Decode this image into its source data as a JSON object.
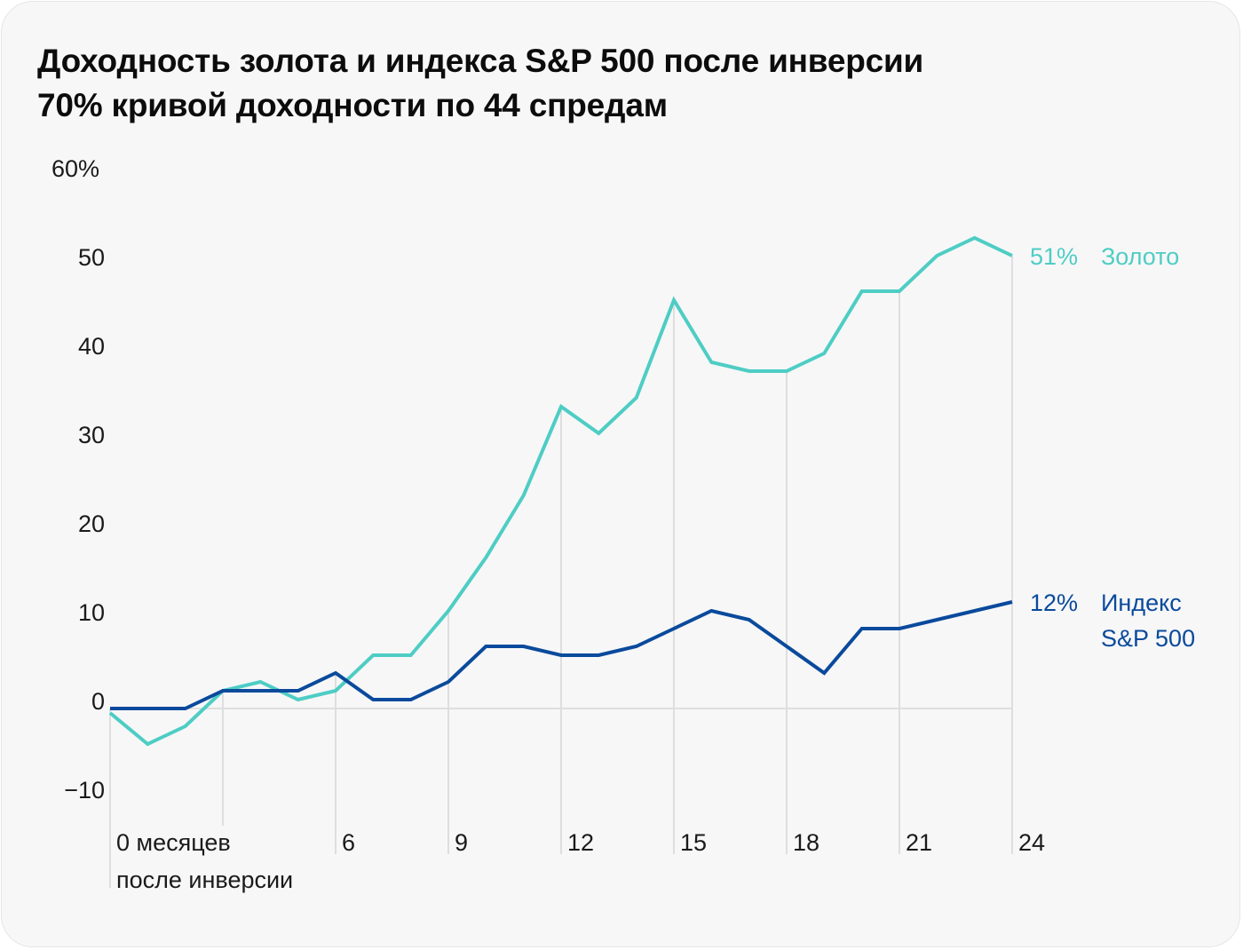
{
  "chart_data": {
    "type": "line",
    "title": "Доходность золота и индекса S&P 500 после инверсии 70% кривой доходности по 44 спредам",
    "title_lines": [
      "Доходность золота и индекса S&P 500 после инверсии",
      "70% кривой доходности по 44 спредам"
    ],
    "xlabel": "",
    "ylabel": "",
    "x": [
      0,
      1,
      2,
      3,
      4,
      5,
      6,
      7,
      8,
      9,
      10,
      11,
      12,
      13,
      14,
      15,
      16,
      17,
      18,
      19,
      20,
      21,
      22,
      23,
      24
    ],
    "xlim": [
      0,
      24
    ],
    "ylim": [
      -10,
      60
    ],
    "x_ticks": [
      0,
      3,
      6,
      9,
      12,
      15,
      18,
      21,
      24
    ],
    "x_tick_labels": [
      {
        "value": 0,
        "lines": [
          "0 месяцев",
          "после инверсии"
        ]
      },
      {
        "value": 6,
        "lines": [
          "6"
        ]
      },
      {
        "value": 9,
        "lines": [
          "9"
        ]
      },
      {
        "value": 12,
        "lines": [
          "12"
        ]
      },
      {
        "value": 15,
        "lines": [
          "15"
        ]
      },
      {
        "value": 18,
        "lines": [
          "18"
        ]
      },
      {
        "value": 21,
        "lines": [
          "21"
        ]
      },
      {
        "value": 24,
        "lines": [
          "24"
        ]
      }
    ],
    "y_ticks": [
      60,
      50,
      40,
      30,
      20,
      10,
      0,
      -10
    ],
    "y_tick_labels": [
      "60%",
      "50",
      "40",
      "30",
      "20",
      "10",
      "0",
      "−10"
    ],
    "grid": "vertical drop lines at x ticks, horizontal zero line",
    "legend": "inline-right",
    "series": [
      {
        "name": "Золото",
        "end_label_value": "51%",
        "end_label_name": [
          "Золото"
        ],
        "color": "#4ecdc4",
        "values": [
          -0.5,
          -4,
          -2,
          2,
          3,
          1,
          2,
          6,
          6,
          11,
          17,
          24,
          34,
          31,
          35,
          46,
          39,
          38,
          38,
          40,
          47,
          47,
          51,
          53,
          51
        ]
      },
      {
        "name": "Индекс S&P 500",
        "end_label_value": "12%",
        "end_label_name": [
          "Индекс",
          "S&P 500"
        ],
        "color": "#0a4a9c",
        "values": [
          0,
          0,
          0,
          2,
          2,
          2,
          4,
          1,
          1,
          3,
          7,
          7,
          6,
          6,
          7,
          9,
          11,
          10,
          7,
          4,
          9,
          9,
          10,
          11,
          12
        ]
      }
    ]
  },
  "colors": {
    "gold": "#4ecdc4",
    "sp500": "#0a4a9c",
    "grid": "#dedede",
    "text": "#1a1a1a"
  }
}
